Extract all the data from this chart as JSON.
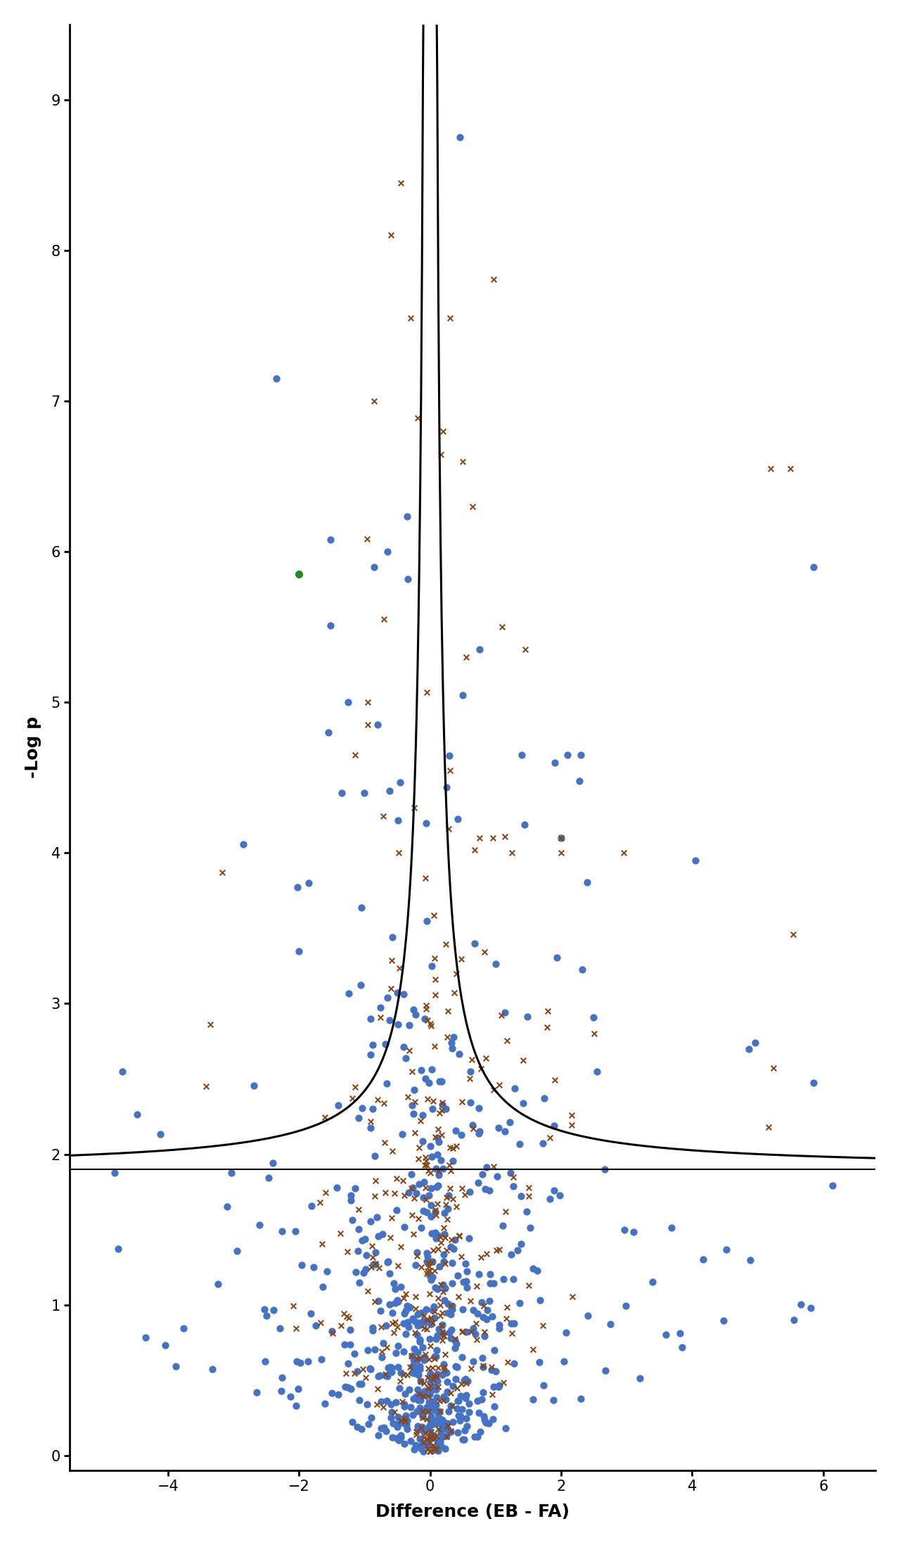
{
  "title": "",
  "xlabel": "Difference (EB - FA)",
  "ylabel": "-Log p",
  "xlim": [
    -5.5,
    6.8
  ],
  "ylim": [
    -0.1,
    9.5
  ],
  "xticks": [
    -4,
    -2,
    0,
    2,
    4,
    6
  ],
  "yticks": [
    0,
    1,
    2,
    3,
    4,
    5,
    6,
    7,
    8,
    9
  ],
  "hline_y": 1.9,
  "curve_k": 0.5,
  "background_color": "#ffffff",
  "blue_color": "#4472C4",
  "brown_color": "#8B4513",
  "green_color": "#228B22",
  "line_color": "#000000",
  "point_size_blue": 55,
  "point_size_brown": 30,
  "point_size_green": 65,
  "seed": 42
}
